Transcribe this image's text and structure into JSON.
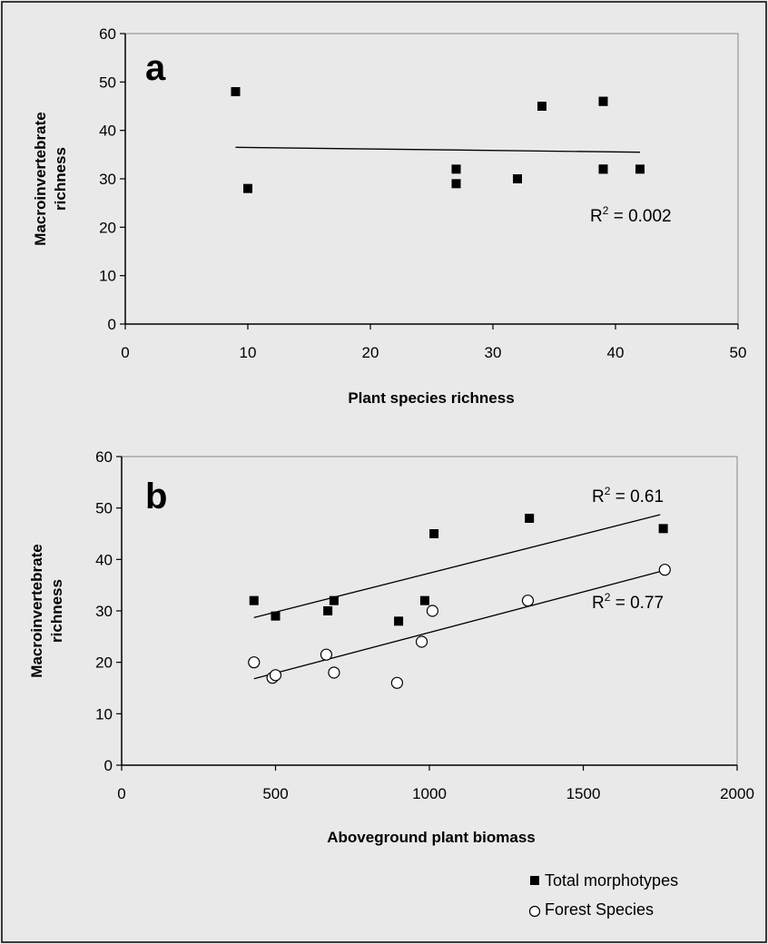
{
  "chart_data": [
    {
      "type": "scatter",
      "panel_label": "a",
      "xlabel": "Plant species richness",
      "ylabel": "Macroinvertebrate richness",
      "xlim": [
        0,
        50
      ],
      "ylim": [
        0,
        60
      ],
      "xticks": [
        0,
        10,
        20,
        30,
        40,
        50
      ],
      "yticks": [
        0,
        10,
        20,
        30,
        40,
        50,
        60
      ],
      "grid": false,
      "series": [
        {
          "marker": "filled-square",
          "x": [
            9,
            10,
            27,
            27,
            32,
            34,
            39,
            39,
            39,
            39,
            42
          ],
          "y": [
            48,
            28,
            32,
            29,
            30,
            45,
            46,
            46,
            32,
            32,
            32
          ]
        }
      ],
      "trendlines": [
        {
          "x": [
            9,
            42
          ],
          "y": [
            36.5,
            35.5
          ],
          "label_prefix": "R",
          "label_sup": "2",
          "label_value": " = 0.002"
        }
      ]
    },
    {
      "type": "scatter",
      "panel_label": "b",
      "xlabel": "Aboveground plant biomass",
      "ylabel": "Macroinvertebrate richness",
      "xlim": [
        0,
        2000
      ],
      "ylim": [
        0,
        60
      ],
      "xticks": [
        0,
        500,
        1000,
        1500,
        2000
      ],
      "yticks": [
        0,
        10,
        20,
        30,
        40,
        50,
        60
      ],
      "grid": false,
      "legend_position": "bottom-right",
      "series": [
        {
          "name": "Total morphotypes",
          "marker": "filled-square",
          "x": [
            430,
            500,
            670,
            690,
            900,
            985,
            1015,
            1325,
            1760
          ],
          "y": [
            32,
            29,
            30,
            32,
            28,
            32,
            45,
            48,
            46
          ]
        },
        {
          "name": "Forest Species",
          "marker": "open-circle",
          "x": [
            430,
            490,
            500,
            665,
            690,
            895,
            975,
            1010,
            1320,
            1765
          ],
          "y": [
            20,
            17,
            17.5,
            21.5,
            18,
            16,
            24,
            30,
            32,
            38
          ]
        }
      ],
      "trendlines": [
        {
          "x": [
            430,
            1750
          ],
          "y": [
            28.7,
            48.7
          ],
          "label_prefix": "R",
          "label_sup": "2",
          "label_value": " = 0.61"
        },
        {
          "x": [
            430,
            1760
          ],
          "y": [
            16.8,
            37.8
          ],
          "label_prefix": "R",
          "label_sup": "2",
          "label_value": " = 0.77"
        }
      ]
    }
  ]
}
